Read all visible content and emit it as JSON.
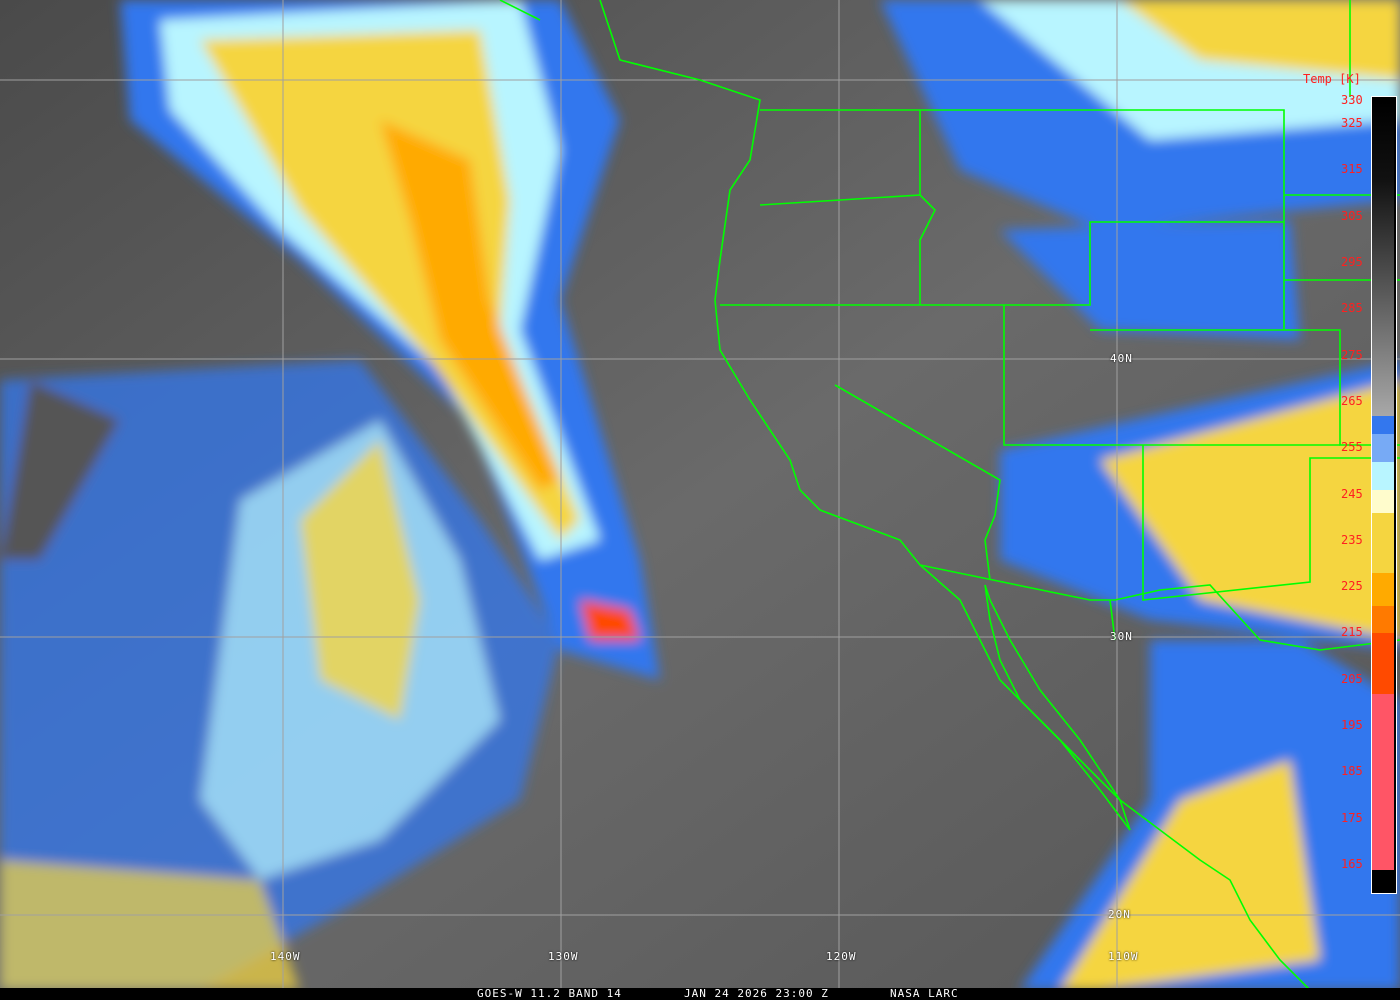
{
  "caption": {
    "product": "GOES-W 11.2 BAND 14",
    "datetime": "JAN 24 2026 23:00 Z",
    "credit": "NASA LARC"
  },
  "colorbar": {
    "title": "Temp [K]",
    "ticks": [
      "330",
      "325",
      "315",
      "305",
      "295",
      "285",
      "275",
      "265",
      "255",
      "245",
      "235",
      "225",
      "215",
      "205",
      "195",
      "185",
      "175",
      "165"
    ],
    "bands": [
      {
        "from": 330,
        "to": 262,
        "color": "gradient black-gray"
      },
      {
        "from": 262,
        "to": 258,
        "color": "#3377ee"
      },
      {
        "from": 258,
        "to": 252,
        "color": "#77aaf5"
      },
      {
        "from": 252,
        "to": 246,
        "color": "#b8f5ff"
      },
      {
        "from": 246,
        "to": 241,
        "color": "#fffccc"
      },
      {
        "from": 241,
        "to": 228,
        "color": "#f5d540"
      },
      {
        "from": 228,
        "to": 221,
        "color": "#ffaa00"
      },
      {
        "from": 221,
        "to": 215,
        "color": "#ff7a00"
      },
      {
        "from": 215,
        "to": 202,
        "color": "#ff4a00"
      },
      {
        "from": 202,
        "to": 164,
        "color": "#ff5566"
      },
      {
        "from": 164,
        "to": 160,
        "color": "#000000"
      }
    ]
  },
  "grid": {
    "longitudes": [
      "140W",
      "130W",
      "120W",
      "110W"
    ],
    "latitudes": [
      "40N",
      "30N",
      "20N"
    ]
  },
  "colors": {
    "border": "#00ff00",
    "grid": "#a0a0a0",
    "label": "#ff2020"
  }
}
